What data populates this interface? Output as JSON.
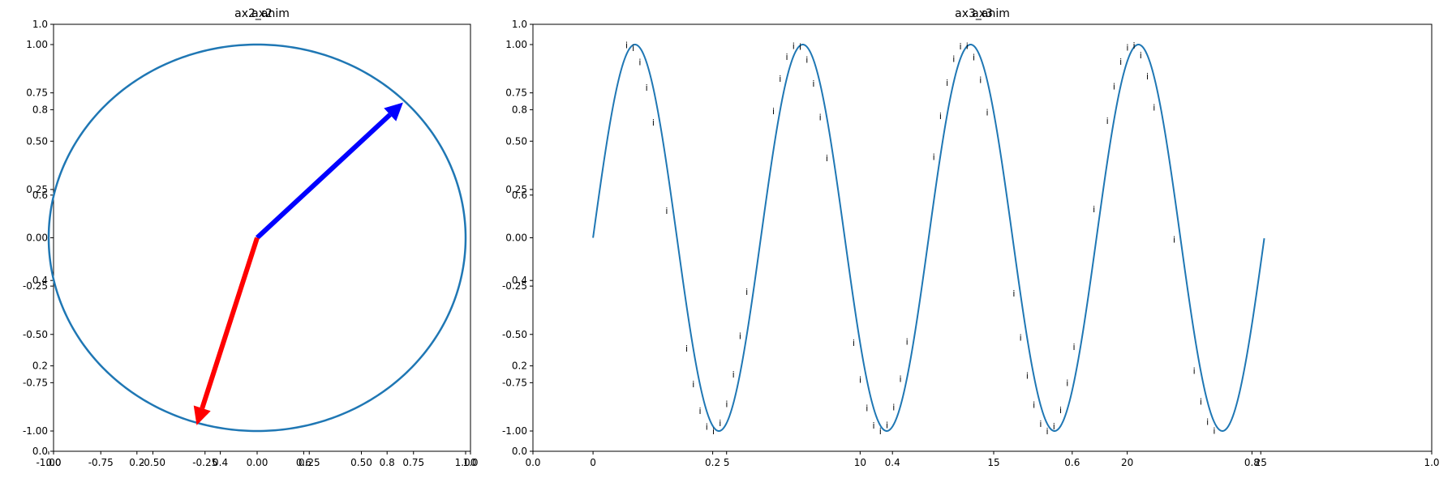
{
  "chart_data": [
    {
      "id": "ax2",
      "type": "line",
      "titles": [
        "ax2",
        "ax2_anim"
      ],
      "xlim": [
        -1.0,
        1.0
      ],
      "ylim": [
        -1.0,
        1.0
      ],
      "xticks": [
        "-1.00",
        "-0.75",
        "-0.50",
        "-0.25",
        "0.00",
        "0.25",
        "0.50",
        "0.75",
        "1.00"
      ],
      "yticks": [
        "-1.00",
        "-0.75",
        "-0.50",
        "-0.25",
        "0.00",
        "0.25",
        "0.50",
        "0.75",
        "1.00"
      ],
      "overlay_ticks": [
        "0.0",
        "0.2",
        "0.4",
        "0.6",
        "0.8",
        "1.0"
      ],
      "series": [
        {
          "kind": "circle",
          "color": "#1f77b4",
          "cx": 0,
          "cy": 0,
          "r": 1.0
        }
      ],
      "arrows": [
        {
          "color": "#0000ff",
          "x": 0.7,
          "y": 0.7
        },
        {
          "color": "#ff0000",
          "x": -0.29,
          "y": -0.97
        }
      ],
      "grid": false
    },
    {
      "id": "ax3",
      "type": "line",
      "titles": [
        "ax3",
        "ax3_anim"
      ],
      "xlim": [
        -2.25,
        31.4
      ],
      "ylim": [
        -1.0,
        1.0
      ],
      "xticks": [
        "0",
        "5",
        "10",
        "15",
        "20",
        "25"
      ],
      "yticks": [
        "-1.00",
        "-0.75",
        "-0.50",
        "-0.25",
        "0.00",
        "0.25",
        "0.50",
        "0.75",
        "1.00"
      ],
      "overlay_ticks": [
        "0.0",
        "0.2",
        "0.4",
        "0.6",
        "0.8",
        "1.0"
      ],
      "series": [
        {
          "kind": "sine",
          "color": "#1f77b4",
          "x_start": 0,
          "x_end": 25.13,
          "amplitude": 1.0,
          "frequency": 1.0
        }
      ],
      "point_label": "i",
      "point_label_range": [
        1.5,
        23.5
      ],
      "point_label_step": 0.25,
      "grid": false
    }
  ]
}
